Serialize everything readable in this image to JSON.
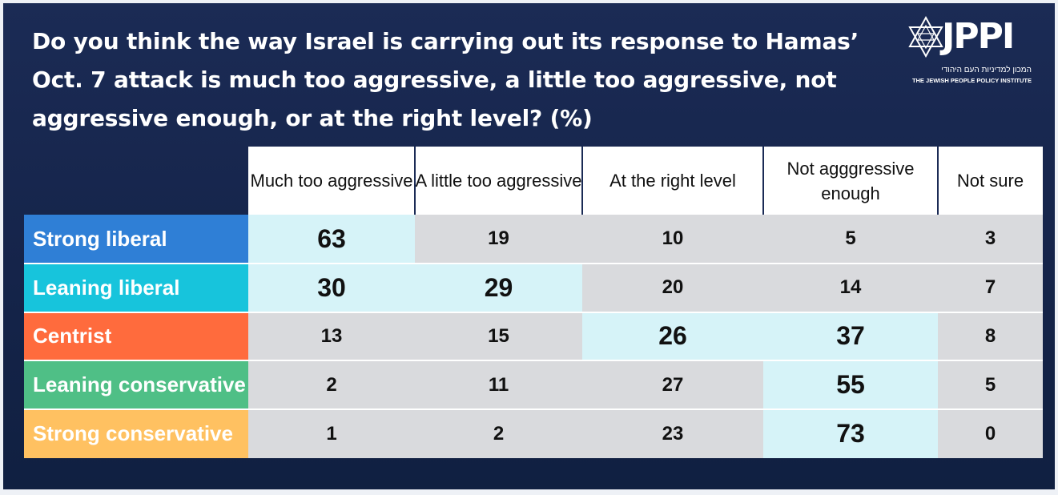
{
  "title": "Do you think the way Israel is carrying out its response to Hamas’ Oct. 7 attack is much too aggressive, a little too aggressive, not aggressive enough, or at the right level? (%)",
  "logo": {
    "name": "JPPI",
    "hebrew": "המכון למדיניות העם היהודי",
    "english": "THE JEWISH PEOPLE POLICY INSTITUTE"
  },
  "colors": {
    "background": "#1b2b55",
    "highlight_cell": "#d6f3f8",
    "normal_cell": "#d9dadd",
    "strong_liberal": "#2f7fd6",
    "leaning_liberal": "#17c4dc",
    "centrist": "#ff6b3d",
    "leaning_conservative": "#4fbf86",
    "strong_conservative": "#ffc161"
  },
  "chart_data": {
    "type": "table",
    "title": "Do you think the way Israel is carrying out its response to Hamas’ Oct. 7 attack is much too aggressive, a little too aggressive, not aggressive enough, or at the right level? (%)",
    "columns": [
      "Much too aggressive",
      "A little too aggressive",
      "At the right level",
      "Not agggressive enough",
      "Not sure"
    ],
    "rows": [
      {
        "label": "Strong liberal",
        "values": [
          63,
          19,
          10,
          5,
          3
        ],
        "highlight": [
          0
        ]
      },
      {
        "label": "Leaning liberal",
        "values": [
          30,
          29,
          20,
          14,
          7
        ],
        "highlight": [
          0,
          1
        ]
      },
      {
        "label": "Centrist",
        "values": [
          13,
          15,
          26,
          37,
          8
        ],
        "highlight": [
          2,
          3
        ]
      },
      {
        "label": "Leaning conservative",
        "values": [
          2,
          11,
          27,
          55,
          5
        ],
        "highlight": [
          3
        ]
      },
      {
        "label": "Strong conservative",
        "values": [
          1,
          2,
          23,
          73,
          0
        ],
        "highlight": [
          3
        ]
      }
    ]
  }
}
